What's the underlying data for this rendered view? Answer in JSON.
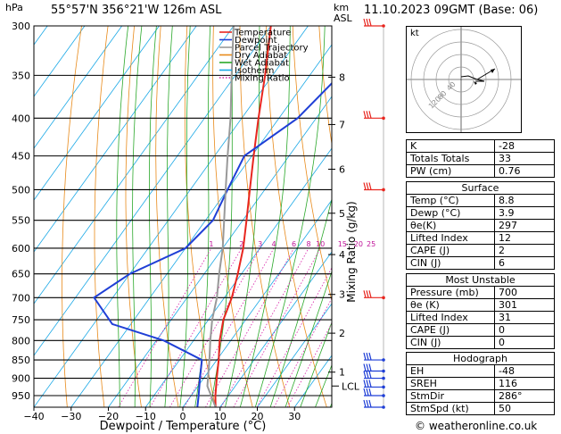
{
  "header": {
    "unit_hpa": "hPa",
    "location": "55°57'N  356°21'W  126m  ASL",
    "unit_km": "km",
    "unit_asl": "ASL",
    "datetime": "11.10.2023  09GMT  (Base: 06)"
  },
  "chart_data": {
    "type": "line",
    "diagram": "skew-T log-P",
    "xlabel": "Dewpoint / Temperature (°C)",
    "ylabel_right": "Mixing Ratio (g/kg)",
    "pressure_ticks": [
      300,
      350,
      400,
      450,
      500,
      550,
      600,
      650,
      700,
      750,
      800,
      850,
      900,
      950
    ],
    "temp_ticks": [
      -40,
      -30,
      -20,
      -10,
      0,
      10,
      20,
      30
    ],
    "xlim": [
      -40,
      40
    ],
    "plim": [
      300,
      985
    ],
    "height_km_ticks": [
      {
        "label": "8",
        "p": 352
      },
      {
        "label": "7",
        "p": 408
      },
      {
        "label": "6",
        "p": 469
      },
      {
        "label": "5",
        "p": 538
      },
      {
        "label": "4",
        "p": 612
      },
      {
        "label": "3",
        "p": 693
      },
      {
        "label": "2",
        "p": 782
      },
      {
        "label": "1",
        "p": 883
      }
    ],
    "lcl_label": "LCL",
    "lcl_p": 922,
    "mixing_ratio_labels": [
      "1",
      "2",
      "3",
      "4",
      "6",
      "8",
      "10",
      "15",
      "20",
      "25"
    ],
    "legend": [
      {
        "name": "Temperature",
        "color": "#e8261f"
      },
      {
        "name": "Dewpoint",
        "color": "#1f3fd6"
      },
      {
        "name": "Parcel Trajectory",
        "color": "#999999"
      },
      {
        "name": "Dry Adiabat",
        "color": "#e88a1a"
      },
      {
        "name": "Wet Adiabat",
        "color": "#2aa82a"
      },
      {
        "name": "Isotherm",
        "color": "#1aa8e6"
      },
      {
        "name": "Mixing Ratio",
        "color": "#d81fa8"
      }
    ],
    "series": [
      {
        "name": "Temperature",
        "points": [
          [
            985,
            8.8
          ],
          [
            950,
            6.5
          ],
          [
            900,
            3.5
          ],
          [
            850,
            0.5
          ],
          [
            800,
            -3
          ],
          [
            750,
            -6
          ],
          [
            700,
            -8
          ],
          [
            650,
            -11
          ],
          [
            600,
            -14.5
          ],
          [
            550,
            -19
          ],
          [
            500,
            -24
          ],
          [
            450,
            -29.5
          ],
          [
            400,
            -35.5
          ],
          [
            350,
            -42
          ],
          [
            300,
            -50
          ]
        ]
      },
      {
        "name": "Dewpoint",
        "points": [
          [
            985,
            3.9
          ],
          [
            950,
            2
          ],
          [
            900,
            -1
          ],
          [
            850,
            -4
          ],
          [
            800,
            -18
          ],
          [
            760,
            -35
          ],
          [
            700,
            -45
          ],
          [
            650,
            -40
          ],
          [
            600,
            -30
          ],
          [
            550,
            -28
          ],
          [
            500,
            -30
          ],
          [
            450,
            -32
          ],
          [
            400,
            -25
          ],
          [
            350,
            -22
          ],
          [
            300,
            -27
          ]
        ]
      },
      {
        "name": "Parcel Trajectory",
        "points": [
          [
            985,
            8.8
          ],
          [
            922,
            2.5
          ],
          [
            850,
            -2
          ],
          [
            800,
            -5.5
          ],
          [
            750,
            -9
          ],
          [
            700,
            -12
          ],
          [
            650,
            -16
          ],
          [
            600,
            -20
          ],
          [
            550,
            -25
          ],
          [
            500,
            -30.5
          ],
          [
            450,
            -36.5
          ],
          [
            400,
            -43
          ],
          [
            350,
            -51
          ],
          [
            300,
            -60
          ]
        ]
      }
    ],
    "wind_barbs_p": [
      300,
      400,
      500,
      700,
      850,
      880,
      900,
      925,
      950,
      985
    ]
  },
  "hodograph": {
    "unit": "kt",
    "ring_labels": [
      "40",
      "80",
      "120"
    ]
  },
  "indices": {
    "basic": [
      {
        "label": "K",
        "value": "-28"
      },
      {
        "label": "Totals Totals",
        "value": "33"
      },
      {
        "label": "PW (cm)",
        "value": "0.76"
      }
    ],
    "surface_title": "Surface",
    "surface": [
      {
        "label": "Temp (°C)",
        "value": "8.8"
      },
      {
        "label": "Dewp (°C)",
        "value": "3.9"
      },
      {
        "label": "θe(K)",
        "value": "297"
      },
      {
        "label": "Lifted Index",
        "value": "12"
      },
      {
        "label": "CAPE (J)",
        "value": "2"
      },
      {
        "label": "CIN (J)",
        "value": "6"
      }
    ],
    "mu_title": "Most Unstable",
    "mu": [
      {
        "label": "Pressure (mb)",
        "value": "700"
      },
      {
        "label": "θe (K)",
        "value": "301"
      },
      {
        "label": "Lifted Index",
        "value": "31"
      },
      {
        "label": "CAPE (J)",
        "value": "0"
      },
      {
        "label": "CIN (J)",
        "value": "0"
      }
    ],
    "hodo_title": "Hodograph",
    "hodo": [
      {
        "label": "EH",
        "value": "-48"
      },
      {
        "label": "SREH",
        "value": "116"
      },
      {
        "label": "StmDir",
        "value": "286°"
      },
      {
        "label": "StmSpd (kt)",
        "value": "50"
      }
    ]
  },
  "footer": {
    "copyright": "© weatheronline.co.uk"
  }
}
